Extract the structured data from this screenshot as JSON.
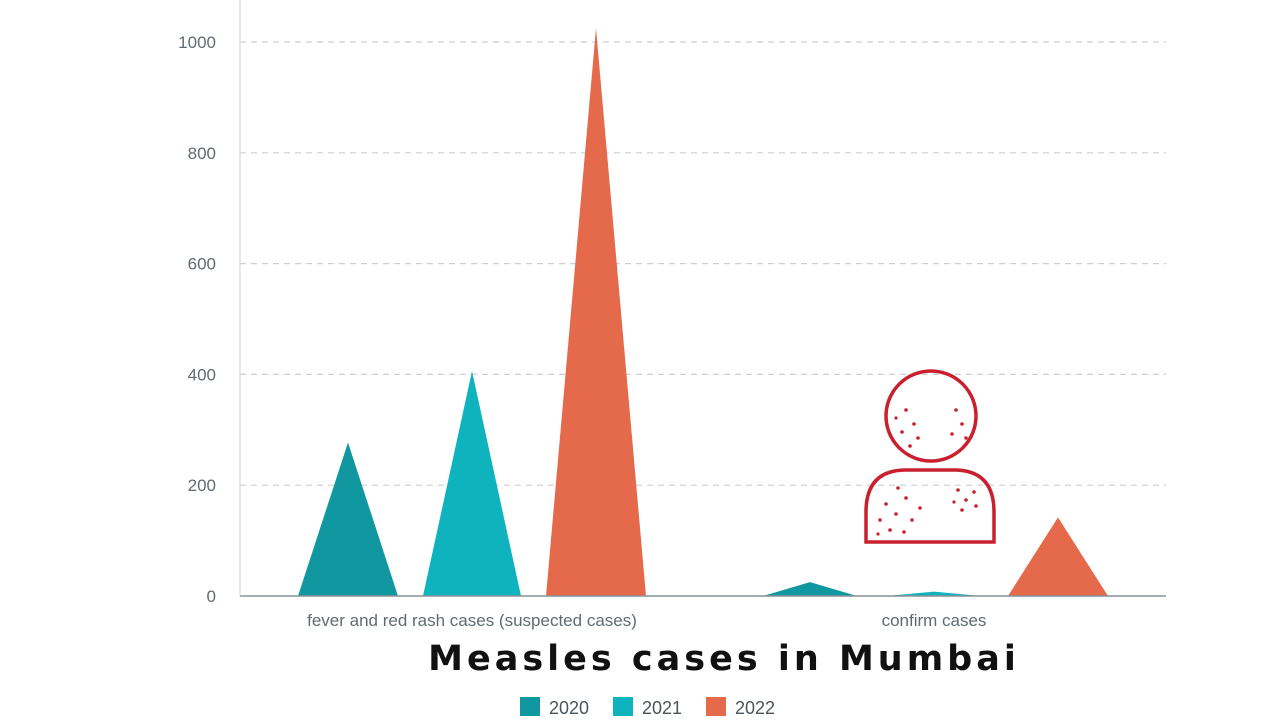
{
  "chart_data": {
    "type": "bar",
    "title": "Measles cases in Mumbai",
    "xlabel": "",
    "ylabel": "",
    "categories": [
      "fever and red rash cases (suspected cases)",
      "confirm cases"
    ],
    "series": [
      {
        "name": "2020",
        "color": "#11979f",
        "values": [
          277,
          25
        ]
      },
      {
        "name": "2021",
        "color": "#0fb3bd",
        "values": [
          406,
          8
        ]
      },
      {
        "name": "2022",
        "color": "#e5694b",
        "values": [
          1025,
          142
        ]
      }
    ],
    "ylim": [
      0,
      1000
    ],
    "yticks": [
      "0",
      "200",
      "400",
      "600",
      "800",
      "1000"
    ],
    "grid": true,
    "legend_position": "bottom",
    "mark_shape": "triangle",
    "icon": "person-with-rash-icon",
    "icon_color": "#c8202e"
  }
}
